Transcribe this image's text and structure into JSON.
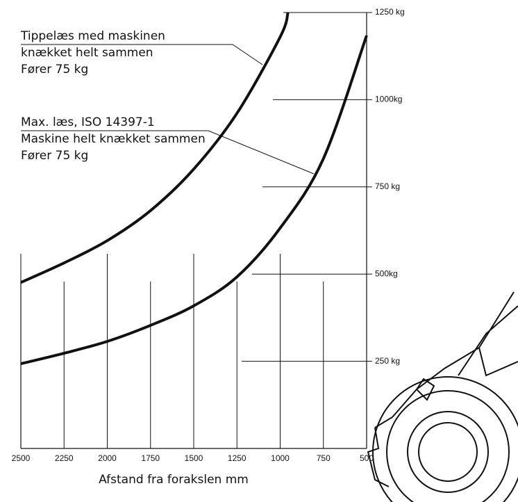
{
  "chart_data": {
    "type": "line",
    "x_label": "Afstand fra forakslen mm",
    "xlim": [
      2500,
      500
    ],
    "xticks": [
      2500,
      2250,
      2000,
      1750,
      1500,
      1250,
      1000,
      750,
      500
    ],
    "ylim": [
      0,
      1250
    ],
    "yticks": [
      {
        "value": 250,
        "label": "250 kg"
      },
      {
        "value": 500,
        "label": "500kg"
      },
      {
        "value": 750,
        "label": "750 kg"
      },
      {
        "value": 1000,
        "label": "1000kg"
      },
      {
        "value": 1250,
        "label": "1250 kg"
      }
    ],
    "grid": true,
    "series": [
      {
        "label": [
          "Tippelæs med maskinen",
          "knækket helt sammen",
          "Fører 75 kg"
        ],
        "color": "#111111",
        "x": [
          2500,
          2250,
          2000,
          1750,
          1500,
          1250,
          1000,
          955
        ],
        "values": [
          476,
          532,
          596,
          682,
          801,
          961,
          1180,
          1250
        ]
      },
      {
        "label": [
          "Max. læs, ISO 14397-1",
          "Maskine helt knækket sammen",
          "Fører 75 kg"
        ],
        "color": "#111111",
        "x": [
          2500,
          2250,
          2000,
          1750,
          1500,
          1250,
          1000,
          750,
          500
        ],
        "values": [
          243,
          273,
          307,
          353,
          409,
          492,
          632,
          831,
          1184
        ]
      }
    ]
  }
}
